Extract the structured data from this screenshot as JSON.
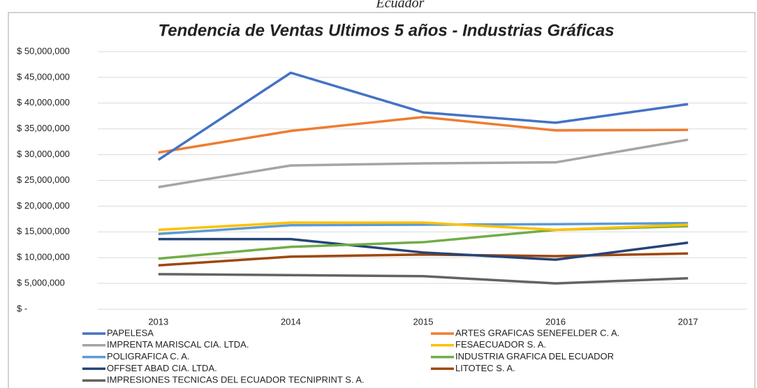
{
  "caption": "Ecuador",
  "chart_data": {
    "type": "line",
    "title": "Tendencia de Ventas Ultimos 5 años  -  Industrias Gráficas",
    "categories": [
      "2013",
      "2014",
      "2015",
      "2016",
      "2017"
    ],
    "ylim": [
      0,
      50000000
    ],
    "yticks": [
      {
        "value": 0,
        "label": "$ -"
      },
      {
        "value": 5000000,
        "label": "$ 5,000,000"
      },
      {
        "value": 10000000,
        "label": "$ 10,000,000"
      },
      {
        "value": 15000000,
        "label": "$ 15,000,000"
      },
      {
        "value": 20000000,
        "label": "$ 20,000,000"
      },
      {
        "value": 25000000,
        "label": "$ 25,000,000"
      },
      {
        "value": 30000000,
        "label": "$ 30,000,000"
      },
      {
        "value": 35000000,
        "label": "$ 35,000,000"
      },
      {
        "value": 40000000,
        "label": "$ 40,000,000"
      },
      {
        "value": 45000000,
        "label": "$ 45,000,000"
      },
      {
        "value": 50000000,
        "label": "$ 50,000,000"
      }
    ],
    "grid": true,
    "series": [
      {
        "name": "PAPELESA",
        "color": "#4472c4",
        "values": [
          29000000,
          45900000,
          38200000,
          36200000,
          39800000
        ]
      },
      {
        "name": "ARTES GRAFICAS SENEFELDER C. A.",
        "color": "#ed7d31",
        "values": [
          30400000,
          34600000,
          37300000,
          34700000,
          34800000
        ]
      },
      {
        "name": "IMPRENTA MARISCAL CIA. LTDA.",
        "color": "#a5a5a5",
        "values": [
          23700000,
          27900000,
          28300000,
          28500000,
          32900000
        ]
      },
      {
        "name": "FESAECUADOR S. A.",
        "color": "#ffc000",
        "values": [
          15400000,
          16800000,
          16800000,
          15400000,
          16400000
        ]
      },
      {
        "name": "POLIGRAFICA C. A.",
        "color": "#5b9bd5",
        "values": [
          14600000,
          16300000,
          16400000,
          16500000,
          16700000
        ]
      },
      {
        "name": "INDUSTRIA GRAFICA DEL ECUADOR",
        "color": "#70ad47",
        "values": [
          9800000,
          12100000,
          13000000,
          15400000,
          16100000
        ]
      },
      {
        "name": "OFFSET ABAD CIA. LTDA.",
        "color": "#264478",
        "values": [
          13600000,
          13600000,
          11000000,
          9600000,
          12900000
        ]
      },
      {
        "name": "LITOTEC S. A.",
        "color": "#9e480e",
        "values": [
          8500000,
          10200000,
          10600000,
          10300000,
          10800000
        ]
      },
      {
        "name": "IMPRESIONES TECNICAS DEL ECUADOR TECNIPRINT S. A.",
        "color": "#636363",
        "values": [
          6800000,
          6600000,
          6400000,
          5000000,
          6000000
        ]
      }
    ]
  }
}
